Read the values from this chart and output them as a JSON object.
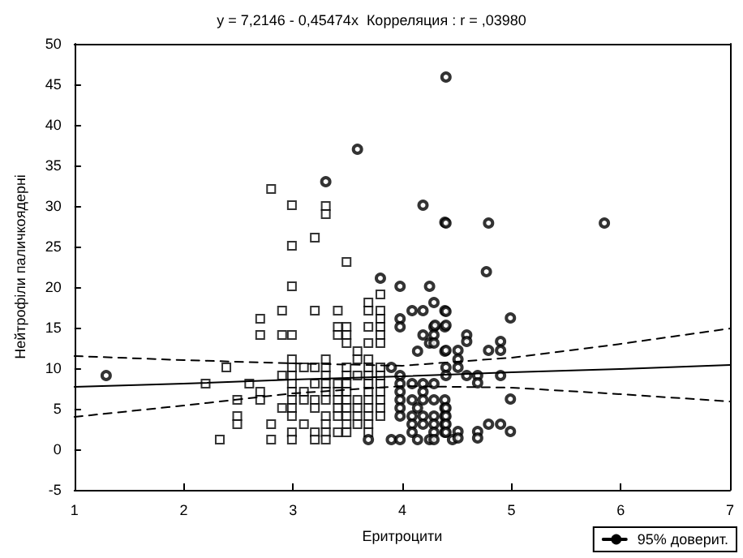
{
  "chart_data": {
    "type": "scatter",
    "title": "y = 7,2146 - 0,45474x  Корреляция : r = ,03980",
    "xlabel": "Еритроцити",
    "ylabel": "Нейтрофіли паличкоядерні",
    "xlim": [
      1,
      7
    ],
    "xticks": [
      1,
      2,
      3,
      4,
      5,
      6,
      7
    ],
    "ylim": [
      -5,
      50
    ],
    "yticks": [
      -5,
      0,
      5,
      10,
      15,
      20,
      25,
      30,
      35,
      40,
      45,
      50
    ],
    "grid": false,
    "legend": "bottom right",
    "series": [
      {
        "type": "scatter",
        "marker": "square",
        "color": "#000000",
        "x": [
          2.8,
          2.99,
          3.3,
          3.3,
          2.99,
          3.2,
          3.49,
          2.99,
          3.8,
          3.69,
          2.9,
          3.2,
          3.41,
          3.69,
          3.8,
          2.7,
          3.8,
          3.41,
          3.49,
          3.69,
          3.8,
          2.7,
          2.9,
          2.99,
          3.41,
          3.49,
          3.8,
          3.49,
          3.69,
          3.8,
          3.59,
          2.99,
          3.3,
          3.59,
          3.69,
          2.39,
          2.99,
          3.1,
          3.2,
          3.3,
          3.49,
          3.69,
          3.8,
          2.9,
          2.99,
          3.3,
          3.49,
          3.59,
          3.69,
          3.8,
          2.2,
          2.6,
          2.99,
          3.2,
          3.3,
          3.41,
          3.49,
          3.69,
          3.8,
          2.7,
          2.99,
          3.1,
          3.3,
          3.41,
          3.49,
          3.69,
          3.8,
          2.49,
          2.7,
          2.99,
          3.1,
          3.2,
          3.3,
          3.41,
          3.49,
          3.59,
          3.69,
          3.8,
          2.9,
          2.99,
          3.2,
          3.41,
          3.49,
          3.59,
          3.69,
          3.8,
          2.49,
          2.99,
          3.3,
          3.41,
          3.49,
          3.59,
          3.69,
          3.8,
          2.49,
          2.8,
          3.1,
          3.3,
          3.49,
          3.59,
          3.69,
          2.99,
          3.2,
          3.3,
          3.41,
          3.49,
          3.69,
          2.33,
          2.8,
          2.99,
          3.2,
          3.3
        ],
        "values": [
          32.1,
          30.1,
          30.0,
          29.0,
          25.1,
          26.1,
          23.1,
          20.1,
          19.1,
          18.1,
          17.1,
          17.1,
          17.1,
          17.1,
          17.1,
          16.1,
          16.1,
          15.1,
          15.1,
          15.1,
          15.1,
          14.1,
          14.1,
          14.1,
          14.1,
          14.1,
          14.1,
          13.1,
          13.1,
          13.1,
          12.1,
          11.1,
          11.1,
          11.1,
          11.1,
          10.1,
          10.1,
          10.1,
          10.1,
          10.1,
          10.1,
          10.1,
          10.1,
          9.1,
          9.1,
          9.1,
          9.1,
          9.1,
          9.1,
          9.1,
          8.1,
          8.1,
          8.1,
          8.1,
          8.1,
          8.1,
          8.1,
          8.1,
          8.1,
          7.1,
          7.1,
          7.1,
          7.1,
          7.1,
          7.1,
          7.1,
          7.1,
          6.1,
          6.1,
          6.1,
          6.1,
          6.1,
          6.1,
          6.1,
          6.1,
          6.1,
          6.1,
          6.1,
          5.1,
          5.1,
          5.1,
          5.1,
          5.1,
          5.1,
          5.1,
          5.1,
          4.1,
          4.1,
          4.1,
          4.1,
          4.1,
          4.1,
          4.1,
          4.1,
          3.1,
          3.1,
          3.1,
          3.1,
          3.1,
          3.1,
          3.1,
          2.1,
          2.1,
          2.1,
          2.1,
          2.1,
          2.1,
          1.2,
          1.2,
          1.2,
          1.2,
          1.2
        ]
      },
      {
        "type": "scatter",
        "marker": "circle",
        "color": "#000000",
        "x": [
          3.59,
          3.3,
          4.19,
          4.39,
          3.8,
          3.98,
          4.25,
          4.29,
          4.09,
          4.19,
          4.39,
          3.98,
          3.98,
          4.29,
          4.39,
          4.19,
          4.29,
          4.25,
          4.29,
          4.14,
          4.39,
          3.9,
          3.98,
          3.98,
          4.09,
          4.19,
          4.29,
          3.98,
          4.19,
          3.98,
          4.09,
          4.19,
          4.29,
          4.39,
          3.98,
          4.14,
          4.39,
          3.98,
          4.09,
          4.19,
          4.29,
          4.39,
          4.09,
          4.19,
          4.29,
          4.39,
          4.09,
          4.29,
          4.39,
          3.69,
          3.9,
          3.98,
          4.14,
          4.25,
          4.29,
          4.46,
          4.4,
          4.99,
          4.3,
          4.4,
          4.59,
          4.59,
          4.9,
          4.4,
          4.51,
          4.79,
          4.9,
          4.51,
          4.4,
          4.51,
          4.4,
          4.59,
          4.69,
          4.9,
          4.69,
          4.99,
          4.4,
          4.4,
          4.4,
          4.4,
          4.51,
          4.69,
          4.99,
          4.51,
          4.69,
          4.79,
          4.9,
          4.4,
          4.4,
          4.79,
          5.85,
          4.77,
          1.29
        ],
        "values": [
          37.0,
          33.0,
          30.1,
          28.0,
          21.1,
          20.1,
          20.1,
          18.1,
          17.1,
          17.1,
          17.1,
          16.1,
          15.1,
          15.1,
          15.1,
          14.1,
          14.1,
          13.1,
          13.1,
          12.1,
          12.1,
          10.1,
          9.1,
          8.1,
          8.1,
          8.1,
          8.1,
          7.1,
          7.1,
          6.1,
          6.1,
          6.1,
          6.1,
          6.1,
          5.1,
          5.1,
          5.1,
          4.1,
          4.1,
          4.1,
          4.1,
          4.1,
          3.1,
          3.1,
          3.1,
          3.1,
          2.1,
          2.1,
          2.1,
          1.2,
          1.2,
          1.2,
          1.2,
          1.2,
          1.2,
          1.2,
          17.0,
          16.2,
          15.3,
          15.3,
          14.1,
          13.3,
          13.3,
          12.2,
          12.2,
          12.2,
          12.2,
          11.1,
          10.1,
          10.1,
          9.1,
          9.1,
          9.1,
          9.1,
          8.2,
          6.2,
          5.1,
          4.1,
          3.1,
          2.1,
          2.2,
          2.2,
          2.2,
          1.4,
          1.4,
          3.1,
          3.1,
          45.9,
          27.9,
          27.9,
          27.9,
          21.9,
          9.1
        ]
      },
      {
        "type": "line",
        "marker": "none",
        "line_style": "solid",
        "color": "#000000",
        "x": [
          1,
          2,
          3,
          4,
          5,
          6,
          7
        ],
        "values": [
          7.7,
          8.1,
          8.6,
          9.0,
          9.5,
          9.9,
          10.4
        ]
      },
      {
        "type": "line",
        "name": "95% доверит.",
        "marker": "none",
        "line_style": "dashed",
        "color": "#000000",
        "x": [
          1,
          2,
          3,
          4,
          5,
          6,
          7
        ],
        "values": [
          11.5,
          11.0,
          10.6,
          10.3,
          11.3,
          13.0,
          14.9
        ]
      },
      {
        "type": "line",
        "marker": "none",
        "line_style": "dashed",
        "color": "#000000",
        "x": [
          1,
          2,
          3,
          4,
          5,
          6,
          7
        ],
        "values": [
          4.0,
          5.4,
          6.9,
          7.8,
          7.6,
          6.8,
          5.9
        ]
      }
    ]
  }
}
